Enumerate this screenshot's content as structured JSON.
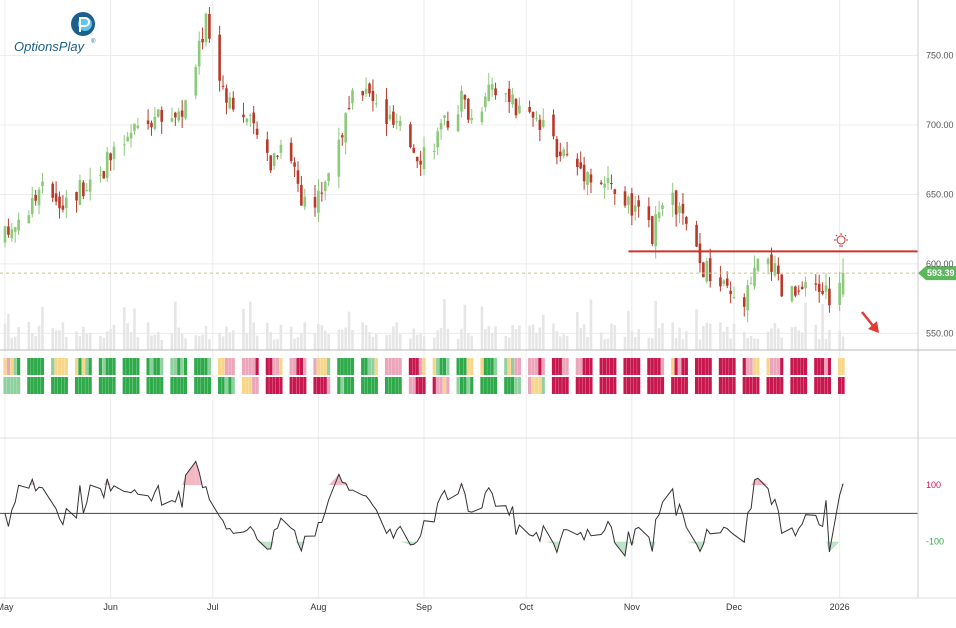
{
  "brand": {
    "name": "OptionsPlay",
    "trademark": "®",
    "colors": {
      "primary": "#1d5f8c",
      "accent": "#5fc3ea"
    }
  },
  "chart_data": {
    "type": "candlestick",
    "price_axis": {
      "ticks": [
        550,
        600,
        650,
        700,
        750
      ],
      "tick_labels": [
        "550.00",
        "600.00",
        "650.00",
        "700.00",
        "750.00"
      ],
      "range": [
        538,
        790
      ]
    },
    "current_price": {
      "value": 593.39,
      "label": "593.39",
      "color": "#5cb85c"
    },
    "months": [
      {
        "label": "May",
        "day": 0
      },
      {
        "label": "Jun",
        "day": 31
      },
      {
        "label": "Jul",
        "day": 61
      },
      {
        "label": "Aug",
        "day": 92
      },
      {
        "label": "Sep",
        "day": 123
      },
      {
        "label": "Oct",
        "day": 153
      },
      {
        "label": "Nov",
        "day": 184
      },
      {
        "label": "Dec",
        "day": 214
      },
      {
        "label": "2026",
        "day": 245
      }
    ],
    "candles": [],
    "colors": {
      "up": "#8cc97a",
      "down": "#b83a2a",
      "resistance": "#d0312d",
      "arrow": "#e03c31",
      "oscillator_line": "#333333",
      "overbought_fill": "#f2b8c6",
      "oversold_fill": "#bfe3c8",
      "rating_green": "#2eaa4a",
      "rating_lightgreen": "#8fd19e",
      "rating_yellow": "#f7d68a",
      "rating_pink": "#eca6bb",
      "rating_red": "#c8174f"
    },
    "resistance": {
      "price": 609,
      "start_day": 183
    },
    "oscillator": {
      "ticks": [
        100,
        -100
      ],
      "tick_labels": [
        "100",
        "-100"
      ],
      "range": [
        -300,
        260
      ],
      "values": []
    },
    "rating_rows": {
      "top": [],
      "bottom": []
    }
  }
}
